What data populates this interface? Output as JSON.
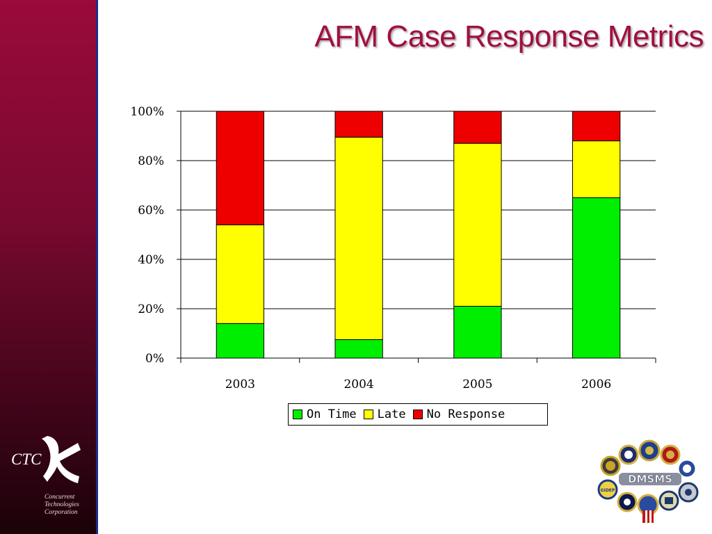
{
  "title": "AFM Case Response Metrics",
  "colors": {
    "on_time": "#00ee00",
    "late": "#ffff00",
    "no_response": "#ee0000",
    "sidebar": "#7a0930",
    "title": "#a0103c"
  },
  "branding": {
    "ctc_mark": "CTC",
    "ctc_lines": [
      "Concurrent",
      "Technologies",
      "Corporation"
    ],
    "dmsms_mark": "DMSMS",
    "gidep_mark": "GIDEP"
  },
  "chart_data": {
    "type": "bar",
    "stacked": true,
    "categories": [
      "2003",
      "2004",
      "2005",
      "2006"
    ],
    "series": [
      {
        "name": "On Time",
        "values": [
          14,
          7.5,
          21,
          65
        ],
        "color": "#00ee00"
      },
      {
        "name": "Late",
        "values": [
          40,
          82,
          66,
          23
        ],
        "color": "#ffff00"
      },
      {
        "name": "No Response",
        "values": [
          46,
          10.5,
          13,
          12
        ],
        "color": "#ee0000"
      }
    ],
    "yticks": [
      "0%",
      "20%",
      "40%",
      "60%",
      "80%",
      "100%"
    ],
    "ylim": [
      0,
      100
    ],
    "grid": true,
    "legend_position": "bottom"
  }
}
